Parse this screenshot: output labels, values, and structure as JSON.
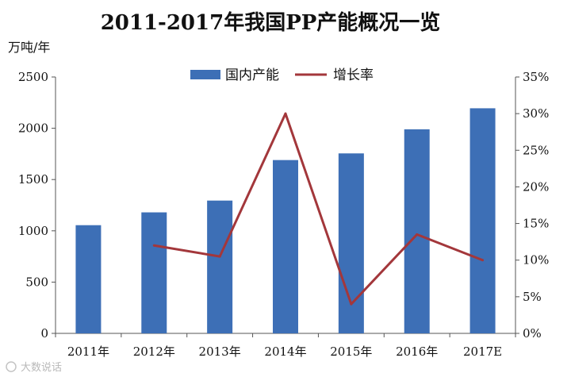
{
  "chart_data": {
    "type": "bar+line",
    "title": "2011-2017年我国PP产能概况一览",
    "ylabel": "万吨/年",
    "categories": [
      "2011年",
      "2012年",
      "2013年",
      "2014年",
      "2015年",
      "2016年",
      "2017E"
    ],
    "series": [
      {
        "name": "国内产能",
        "type": "bar",
        "axis": "left",
        "color": "#3d6fb6",
        "values": [
          1055,
          1180,
          1295,
          1690,
          1755,
          1990,
          2195
        ]
      },
      {
        "name": "增长率",
        "type": "line",
        "axis": "right",
        "color": "#a3373b",
        "values": [
          null,
          12,
          10.5,
          30,
          4,
          13.5,
          10
        ]
      }
    ],
    "ylim": [
      0,
      2500
    ],
    "yticks": [
      "0",
      "500",
      "1000",
      "1500",
      "2000",
      "2500"
    ],
    "y2lim": [
      0,
      35
    ],
    "y2ticks": [
      "0%",
      "5%",
      "10%",
      "15%",
      "20%",
      "25%",
      "30%",
      "35%"
    ],
    "legend_position": "top-center",
    "grid": false
  },
  "watermark": "大数说话"
}
